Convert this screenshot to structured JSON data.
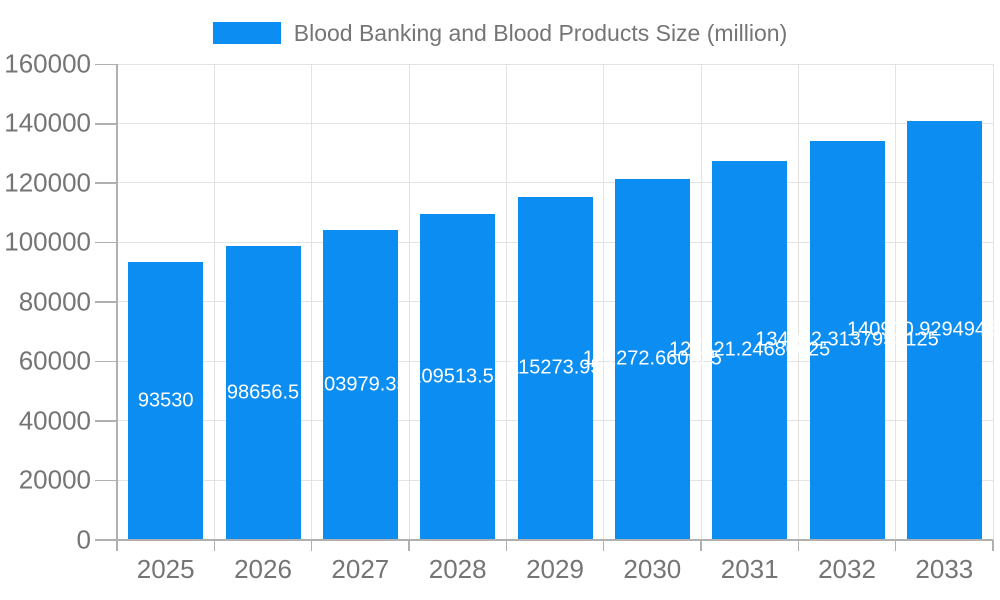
{
  "legend": {
    "label": "Blood Banking and Blood Products Size (million)",
    "swatch_color": "#0b8df2"
  },
  "chart_data": {
    "type": "bar",
    "title": "Blood Banking and Blood Products Size (million)",
    "series_name": "Blood Banking and Blood Products Size (million)",
    "categories": [
      "2025",
      "2026",
      "2027",
      "2028",
      "2029",
      "2030",
      "2031",
      "2032",
      "2033"
    ],
    "values": [
      93530,
      98656.5,
      103979.35,
      109513.55,
      115273.95,
      121272.660625,
      127521.24680625,
      134032.3137953125,
      140910.92949453124
    ],
    "xlabel": "",
    "ylabel": "",
    "ylim": [
      0,
      160000
    ],
    "y_tick_labels": [
      "0",
      "20000",
      "40000",
      "60000",
      "80000",
      "100000",
      "120000",
      "140000",
      "160000"
    ],
    "grid": true,
    "legend_position": "top",
    "bar_color": "#0b8df2",
    "bar_label_color": "#ffffff",
    "axis_text_color": "#757575",
    "axis_line_color": "#b0b0b0",
    "grid_color": "#e3e3e3",
    "background_color": "#ffffff"
  }
}
